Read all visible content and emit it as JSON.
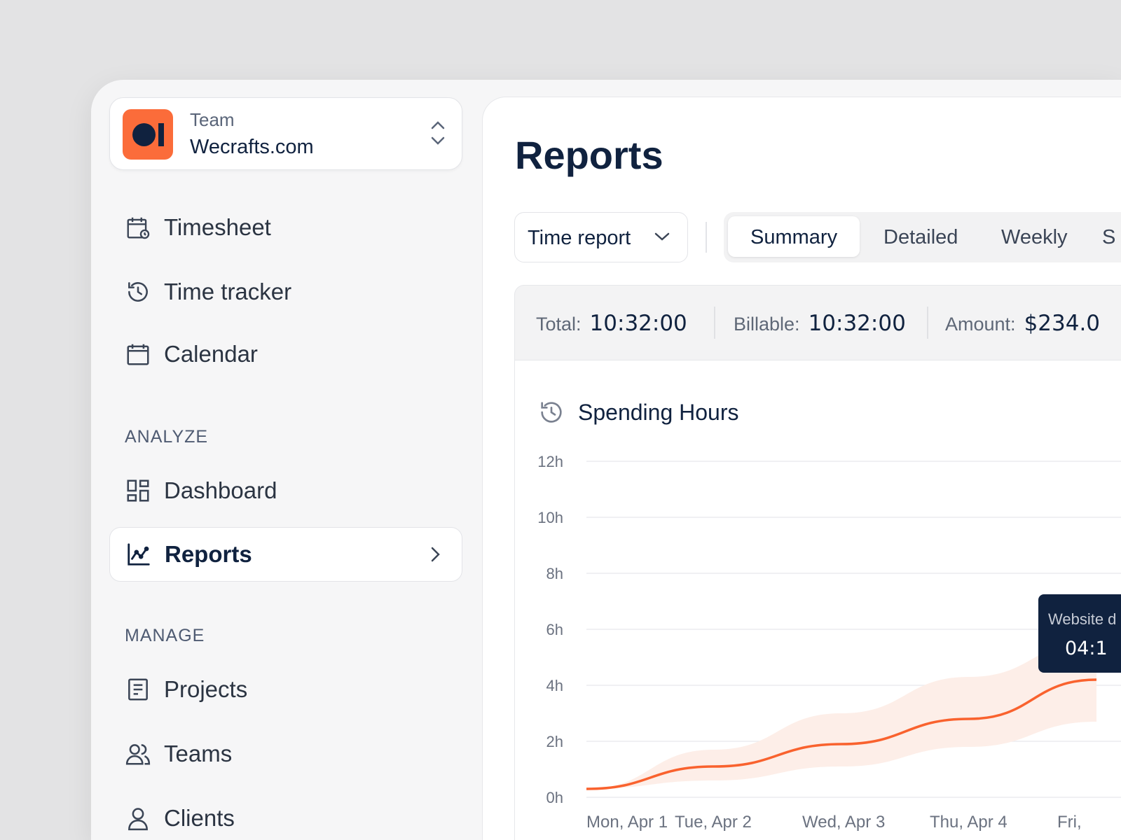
{
  "team": {
    "label": "Team",
    "name": "Wecrafts.com"
  },
  "nav": {
    "timesheet": "Timesheet",
    "time_tracker": "Time tracker",
    "calendar": "Calendar",
    "analyze": "ANALYZE",
    "dashboard": "Dashboard",
    "reports": "Reports",
    "manage": "MANAGE",
    "projects": "Projects",
    "teams": "Teams",
    "clients": "Clients"
  },
  "page": {
    "title": "Reports",
    "report_type": "Time report",
    "tabs": [
      "Summary",
      "Detailed",
      "Weekly",
      "S"
    ]
  },
  "stats": {
    "total_label": "Total:",
    "total": "10:32:00",
    "billable_label": "Billable:",
    "billable": "10:32:00",
    "amount_label": "Amount:",
    "amount": "$234.0"
  },
  "tooltip": {
    "label": "Website d",
    "value": "04:1"
  },
  "colors": {
    "accent": "#fb6c3a",
    "navy": "#10223f"
  },
  "chart_data": {
    "type": "line",
    "title": "Spending Hours",
    "categories": [
      "Mon, Apr 1",
      "Tue, Apr 2",
      "Wed, Apr 3",
      "Thu, Apr 4",
      "Fri,"
    ],
    "values": [
      0.3,
      1.1,
      1.9,
      2.8,
      4.2
    ],
    "band_upper": [
      0.3,
      1.7,
      3.0,
      4.3,
      5.6
    ],
    "band_lower": [
      0.3,
      0.6,
      1.1,
      1.8,
      2.7
    ],
    "yticks": [
      "0h",
      "2h",
      "4h",
      "6h",
      "8h",
      "10h",
      "12h"
    ],
    "ylim": [
      0,
      12
    ],
    "grid": true
  }
}
